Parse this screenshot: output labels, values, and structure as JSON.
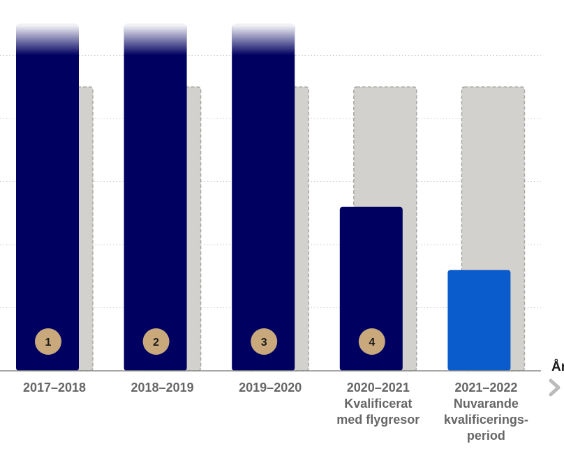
{
  "chart_data": {
    "type": "bar",
    "categories": [
      "2017–2018",
      "2018–2019",
      "2019–2020",
      "2020–2021",
      "2021–2022"
    ],
    "category_sublabels": [
      [],
      [],
      [],
      [
        "Kvalificerat",
        "med flygresor"
      ],
      [
        "Nuvarande",
        "kvalificerings-",
        "period"
      ]
    ],
    "badges": [
      "1",
      "2",
      "3",
      "4",
      ""
    ],
    "series": [
      {
        "values": [
          5.5,
          5.5,
          5.5,
          2.6,
          1.6
        ],
        "color": "#000060",
        "highlight_color": "#0a5ccc",
        "highlight_index": 4
      },
      {
        "values": [
          4.5,
          4.5,
          4.5,
          4.5,
          4.5
        ],
        "color": "#d3d1cd",
        "border": "#a9a7a2"
      }
    ],
    "overflow_fade": [
      true,
      true,
      true,
      false,
      false
    ],
    "ylim": [
      0,
      5.5
    ],
    "grid_step": 1,
    "grid": true,
    "badge_color": "#c9a97c",
    "x_axis_end_label": "År",
    "x_axis_end_icon": "chevron-right-icon",
    "title": "",
    "xlabel": "",
    "ylabel": ""
  }
}
